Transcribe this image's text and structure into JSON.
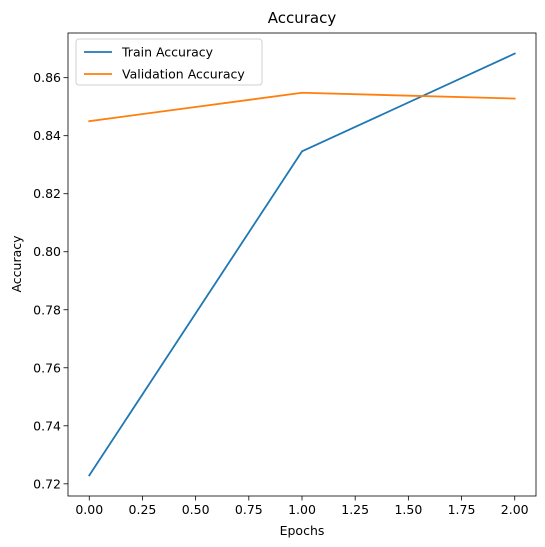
{
  "chart_data": {
    "type": "line",
    "title": "Accuracy",
    "xlabel": "Epochs",
    "ylabel": "Accuracy",
    "x": [
      0,
      1,
      2
    ],
    "xlim": [
      -0.1,
      2.1
    ],
    "ylim": [
      0.7158,
      0.8754
    ],
    "xticks": [
      0.0,
      0.25,
      0.5,
      0.75,
      1.0,
      1.25,
      1.5,
      1.75,
      2.0
    ],
    "xtick_labels": [
      "0.00",
      "0.25",
      "0.50",
      "0.75",
      "1.00",
      "1.25",
      "1.50",
      "1.75",
      "2.00"
    ],
    "yticks": [
      0.72,
      0.74,
      0.76,
      0.78,
      0.8,
      0.82,
      0.84,
      0.86
    ],
    "ytick_labels": [
      "0.72",
      "0.74",
      "0.76",
      "0.78",
      "0.80",
      "0.82",
      "0.84",
      "0.86"
    ],
    "grid": false,
    "legend_position": "upper-left",
    "series": [
      {
        "name": "Train Accuracy",
        "color": "#1f77b4",
        "values": [
          0.7229,
          0.8346,
          0.8683
        ]
      },
      {
        "name": "Validation Accuracy",
        "color": "#ff7f0e",
        "values": [
          0.845,
          0.8548,
          0.8528
        ]
      }
    ]
  }
}
